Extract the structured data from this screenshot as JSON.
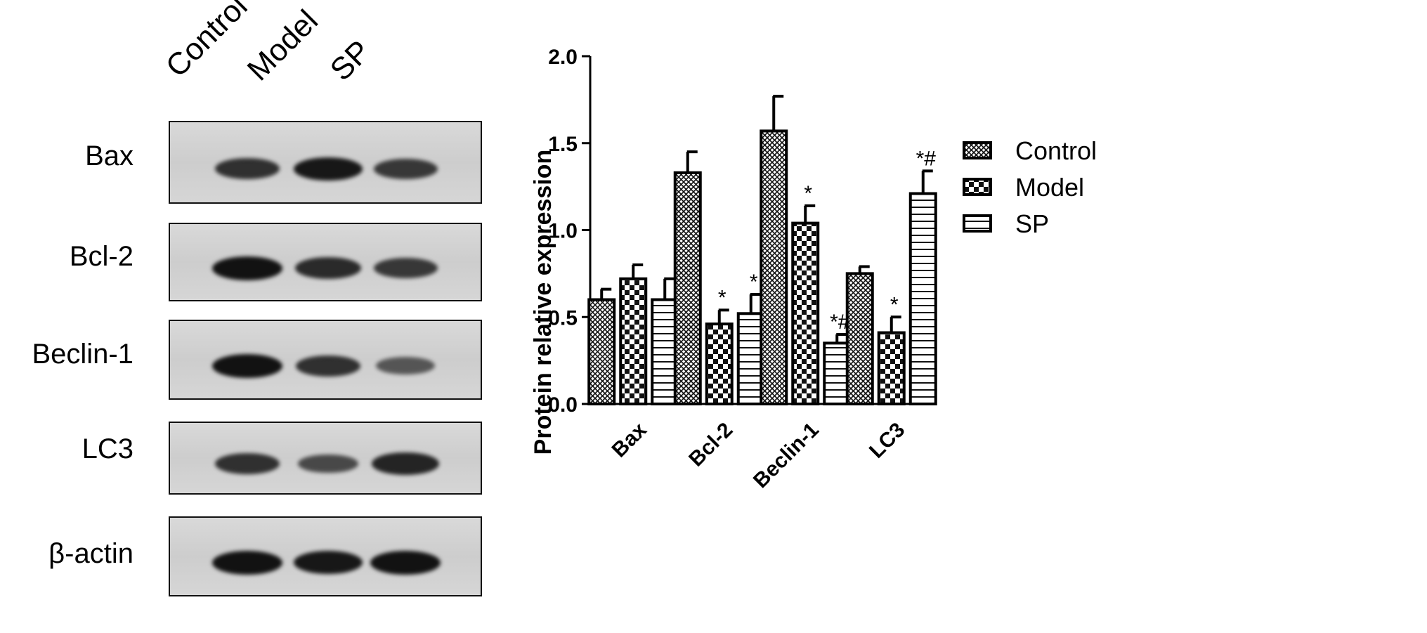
{
  "blot": {
    "lanes": [
      "Control",
      "Model",
      "SP"
    ],
    "rows": [
      {
        "label": "Bax",
        "intensities": [
          0.75,
          0.95,
          0.7
        ]
      },
      {
        "label": "Bcl-2",
        "intensities": [
          1.0,
          0.8,
          0.7
        ]
      },
      {
        "label": "Beclin-1",
        "intensities": [
          1.0,
          0.75,
          0.45
        ]
      },
      {
        "label": "LC3",
        "intensities": [
          0.75,
          0.55,
          0.85
        ]
      },
      {
        "label": "β-actin",
        "intensities": [
          1.0,
          0.95,
          1.0
        ]
      }
    ]
  },
  "chart_data": {
    "type": "bar",
    "ylabel": "Protein relative expression",
    "ylim": [
      0,
      2.0
    ],
    "yticks": [
      "0.0",
      "0.5",
      "1.0",
      "1.5",
      "2.0"
    ],
    "categories": [
      "Bax",
      "Bcl-2",
      "Beclin-1",
      "LC3"
    ],
    "series": [
      {
        "name": "Control",
        "pattern": "crosshatch",
        "values": [
          0.6,
          1.33,
          1.57,
          0.75
        ],
        "errors": [
          0.06,
          0.12,
          0.2,
          0.04
        ],
        "marks": [
          "",
          "",
          "",
          ""
        ]
      },
      {
        "name": "Model",
        "pattern": "checker",
        "values": [
          0.72,
          0.46,
          1.04,
          0.41
        ],
        "errors": [
          0.08,
          0.08,
          0.1,
          0.09
        ],
        "marks": [
          "",
          "*",
          "*",
          "*"
        ]
      },
      {
        "name": "SP",
        "pattern": "horizontal",
        "values": [
          0.6,
          0.52,
          0.35,
          1.21
        ],
        "errors": [
          0.12,
          0.11,
          0.05,
          0.13
        ],
        "marks": [
          "",
          "*",
          "*#",
          "*#"
        ]
      }
    ],
    "legend_position": "right"
  }
}
